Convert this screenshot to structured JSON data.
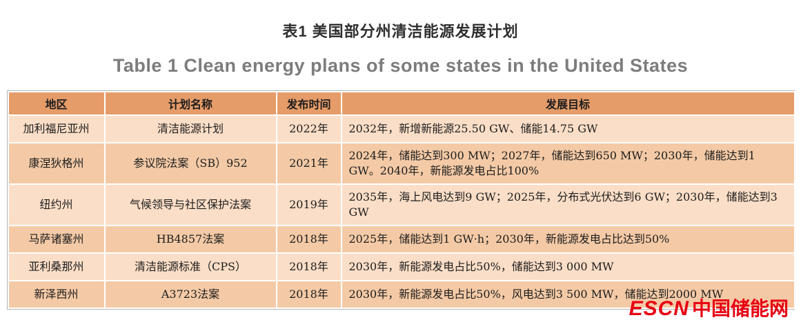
{
  "titles": {
    "zh": "表1  美国部分州清洁能源发展计划",
    "en": "Table 1  Clean energy plans of some states in the United States"
  },
  "table": {
    "headers": [
      "地区",
      "计划名称",
      "发布时间",
      "发展目标"
    ],
    "rows": [
      {
        "region": "加利福尼亚州",
        "plan": "清洁能源计划",
        "date": "2022年",
        "goal": "2032年，新增新能源25.50 GW、储能14.75 GW"
      },
      {
        "region": "康涅狄格州",
        "plan": "参议院法案（SB）952",
        "date": "2021年",
        "goal": "2024年，储能达到300 MW；2027年，储能达到650 MW；2030年，储能达到1 GW。2040年，新能源发电占比100%"
      },
      {
        "region": "纽约州",
        "plan": "气候领导与社区保护法案",
        "date": "2019年",
        "goal": "2035年，海上风电达到9 GW；2025年，分布式光伏达到6 GW；2030年，储能达到3 GW"
      },
      {
        "region": "马萨诸塞州",
        "plan": "HB4857法案",
        "date": "2018年",
        "goal": "2025年，储能达到1 GW·h；2030年，新能源发电占比达到50%"
      },
      {
        "region": "亚利桑那州",
        "plan": "清洁能源标准（CPS）",
        "date": "2018年",
        "goal": "2030年，新能源发电占比50%，储能达到3 000 MW"
      },
      {
        "region": "新泽西州",
        "plan": "A3723法案",
        "date": "2018年",
        "goal": "2030年，新能源发电占比50%，风电达到3 500 MW，储能达到2000 MW"
      }
    ]
  },
  "logo": {
    "en": "ESCN",
    "zh": "中国储能网"
  },
  "colors": {
    "header_bg": "#e69c69",
    "row_light_bg": "#fbdec7",
    "row_dark_bg": "#f4caa6",
    "title_en_color": "#7c7c7c",
    "logo_red": "#e60012"
  }
}
